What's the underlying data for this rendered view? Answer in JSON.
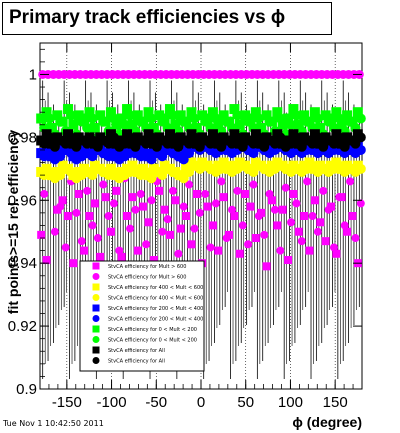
{
  "page": {
    "title": "Primary track efficiencies vs ϕ",
    "timestamp": "Tue Nov  1 10:42:50 2011"
  },
  "chart_data": {
    "type": "scatter",
    "title": "Primary track efficiencies vs ϕ",
    "xlabel": "ϕ (degree)",
    "ylabel": "fit points>=15 rel. efficiency",
    "xlim": [
      -180,
      180
    ],
    "ylim": [
      0.9,
      1.01
    ],
    "xticks": [
      -150,
      -100,
      -50,
      0,
      50,
      100,
      150
    ],
    "yticks": [
      0.9,
      0.92,
      0.94,
      0.96,
      0.98,
      1
    ],
    "ytick_labels": [
      "0.9",
      "0.92",
      "0.94",
      "0.96",
      "0.98",
      "1"
    ],
    "grid": "vertical-dotted",
    "legend_position": "bottom-left",
    "x_start": -177,
    "x_step": 6,
    "series": [
      {
        "name": "StvCA efficiency  for Mult > 600",
        "color": "#ff00ff",
        "marker": "square",
        "values": [
          0.949,
          0.941,
          0.968,
          0.957,
          0.96,
          0.955,
          0.94,
          0.962,
          0.944,
          0.955,
          0.959,
          0.942,
          0.961,
          0.95,
          0.963,
          0.942,
          0.955,
          0.961,
          0.944,
          0.958,
          0.953,
          0.941,
          0.963,
          0.957,
          0.949,
          0.96,
          0.951,
          0.955,
          0.946,
          0.962,
          0.94,
          0.958,
          0.952,
          0.944,
          0.961,
          0.949,
          0.955,
          0.943,
          0.962,
          0.958,
          0.948,
          0.956,
          0.939,
          0.96,
          0.952,
          0.957,
          0.941,
          0.962,
          0.95,
          0.955,
          0.944,
          0.96,
          0.953,
          0.947,
          0.958,
          0.943,
          0.961,
          0.95,
          0.955,
          0.94
        ]
      },
      {
        "name": "StvCA efficiency  for Mult > 600",
        "color": "#ff00ff",
        "marker": "circle",
        "values": [
          0.962,
          0.968,
          0.95,
          0.958,
          0.945,
          0.966,
          0.956,
          0.947,
          0.963,
          0.952,
          0.948,
          0.965,
          0.955,
          0.959,
          0.944,
          0.967,
          0.951,
          0.957,
          0.962,
          0.946,
          0.96,
          0.966,
          0.95,
          0.954,
          0.963,
          0.943,
          0.958,
          0.965,
          0.951,
          0.956,
          0.962,
          0.945,
          0.959,
          0.966,
          0.948,
          0.957,
          0.963,
          0.952,
          0.946,
          0.965,
          0.955,
          0.949,
          0.962,
          0.957,
          0.944,
          0.964,
          0.953,
          0.959,
          0.947,
          0.966,
          0.955,
          0.95,
          0.963,
          0.957,
          0.945,
          0.961,
          0.952,
          0.966,
          0.948,
          0.959
        ]
      },
      {
        "name": "StvCA efficiency  for 400 < Mult < 600",
        "color": "#ffff00",
        "marker": "square",
        "values": [
          0.969,
          0.97,
          0.968,
          0.969,
          0.971,
          0.97,
          0.968,
          0.969,
          0.97,
          0.969,
          0.971,
          0.97,
          0.969,
          0.97,
          0.968,
          0.969,
          0.97,
          0.971,
          0.969,
          0.97,
          0.968,
          0.97,
          0.969,
          0.971,
          0.97,
          0.969,
          0.968,
          0.97,
          0.972,
          0.971,
          0.972,
          0.971,
          0.97,
          0.971,
          0.972,
          0.97,
          0.971,
          0.972,
          0.971,
          0.97,
          0.972,
          0.971,
          0.97,
          0.971,
          0.972,
          0.971,
          0.97,
          0.971,
          0.97,
          0.971,
          0.972,
          0.97,
          0.971,
          0.97,
          0.971,
          0.972,
          0.97,
          0.971,
          0.97,
          0.971
        ]
      },
      {
        "name": "StvCA efficiency  for 400 < Mult < 600",
        "color": "#ffff00",
        "marker": "circle",
        "values": [
          0.968,
          0.969,
          0.967,
          0.968,
          0.97,
          0.969,
          0.967,
          0.968,
          0.969,
          0.968,
          0.97,
          0.969,
          0.968,
          0.969,
          0.967,
          0.968,
          0.969,
          0.97,
          0.968,
          0.969,
          0.967,
          0.969,
          0.968,
          0.97,
          0.969,
          0.968,
          0.967,
          0.969,
          0.971,
          0.97,
          0.971,
          0.97,
          0.969,
          0.97,
          0.971,
          0.969,
          0.97,
          0.971,
          0.97,
          0.969,
          0.971,
          0.97,
          0.969,
          0.97,
          0.971,
          0.97,
          0.969,
          0.97,
          0.969,
          0.97,
          0.971,
          0.969,
          0.97,
          0.969,
          0.97,
          0.971,
          0.969,
          0.97,
          0.969,
          0.97
        ]
      },
      {
        "name": "StvCA efficiency  for 200 < Mult < 400",
        "color": "#0000ff",
        "marker": "square",
        "values": [
          0.975,
          0.976,
          0.974,
          0.975,
          0.977,
          0.976,
          0.974,
          0.975,
          0.976,
          0.975,
          0.977,
          0.976,
          0.975,
          0.976,
          0.974,
          0.975,
          0.976,
          0.977,
          0.975,
          0.976,
          0.974,
          0.976,
          0.975,
          0.977,
          0.976,
          0.975,
          0.974,
          0.976,
          0.978,
          0.977,
          0.978,
          0.977,
          0.976,
          0.977,
          0.978,
          0.976,
          0.977,
          0.978,
          0.977,
          0.976,
          0.978,
          0.977,
          0.976,
          0.977,
          0.978,
          0.977,
          0.976,
          0.977,
          0.976,
          0.977,
          0.978,
          0.976,
          0.977,
          0.976,
          0.977,
          0.978,
          0.976,
          0.977,
          0.976,
          0.977
        ]
      },
      {
        "name": "StvCA efficiency  for 200 < Mult < 400",
        "color": "#0000ff",
        "marker": "circle",
        "values": [
          0.974,
          0.975,
          0.973,
          0.974,
          0.976,
          0.975,
          0.973,
          0.974,
          0.975,
          0.974,
          0.976,
          0.975,
          0.974,
          0.975,
          0.973,
          0.974,
          0.975,
          0.976,
          0.974,
          0.975,
          0.973,
          0.975,
          0.974,
          0.976,
          0.975,
          0.974,
          0.973,
          0.975,
          0.977,
          0.976,
          0.977,
          0.976,
          0.975,
          0.976,
          0.977,
          0.975,
          0.976,
          0.977,
          0.976,
          0.975,
          0.977,
          0.976,
          0.975,
          0.976,
          0.977,
          0.976,
          0.975,
          0.976,
          0.975,
          0.976,
          0.977,
          0.975,
          0.976,
          0.975,
          0.976,
          0.977,
          0.975,
          0.976,
          0.975,
          0.976
        ]
      },
      {
        "name": "StvCA efficiency  for 0 < Mult < 200",
        "color": "#00ff00",
        "marker": "square",
        "values": [
          0.986,
          0.988,
          0.983,
          0.987,
          0.985,
          0.989,
          0.984,
          0.987,
          0.986,
          0.988,
          0.983,
          0.987,
          0.985,
          0.988,
          0.984,
          0.986,
          0.989,
          0.984,
          0.987,
          0.985,
          0.988,
          0.983,
          0.987,
          0.986,
          0.989,
          0.984,
          0.987,
          0.985,
          0.988,
          0.983,
          0.987,
          0.986,
          0.988,
          0.984,
          0.987,
          0.985,
          0.989,
          0.984,
          0.987,
          0.986,
          0.988,
          0.983,
          0.987,
          0.985,
          0.988,
          0.984,
          0.986,
          0.989,
          0.984,
          0.987,
          0.985,
          0.988,
          0.983,
          0.987,
          0.986,
          0.988,
          0.984,
          0.987,
          0.985,
          0.988
        ]
      },
      {
        "name": "StvCA efficiency  for 0 < Mult < 200",
        "color": "#00ff00",
        "marker": "circle",
        "values": [
          0.983,
          0.986,
          0.981,
          0.985,
          0.982,
          0.987,
          0.981,
          0.985,
          0.983,
          0.986,
          0.98,
          0.985,
          0.982,
          0.986,
          0.981,
          0.984,
          0.987,
          0.982,
          0.985,
          0.983,
          0.986,
          0.981,
          0.985,
          0.983,
          0.987,
          0.982,
          0.985,
          0.983,
          0.986,
          0.981,
          0.985,
          0.983,
          0.986,
          0.982,
          0.985,
          0.983,
          0.987,
          0.981,
          0.985,
          0.983,
          0.986,
          0.981,
          0.985,
          0.982,
          0.986,
          0.981,
          0.984,
          0.987,
          0.982,
          0.985,
          0.983,
          0.986,
          0.981,
          0.985,
          0.983,
          0.986,
          0.982,
          0.985,
          0.983,
          0.986
        ]
      },
      {
        "name": "StvCA efficiency  for All",
        "color": "#000000",
        "marker": "square",
        "values": [
          0.979,
          0.981,
          0.978,
          0.98,
          0.979,
          0.981,
          0.978,
          0.98,
          0.979,
          0.98,
          0.978,
          0.98,
          0.979,
          0.981,
          0.978,
          0.979,
          0.981,
          0.978,
          0.98,
          0.979,
          0.981,
          0.978,
          0.98,
          0.979,
          0.981,
          0.978,
          0.98,
          0.979,
          0.981,
          0.978,
          0.98,
          0.979,
          0.981,
          0.978,
          0.98,
          0.979,
          0.981,
          0.978,
          0.98,
          0.979,
          0.981,
          0.978,
          0.98,
          0.979,
          0.981,
          0.978,
          0.979,
          0.981,
          0.978,
          0.98,
          0.979,
          0.981,
          0.978,
          0.98,
          0.979,
          0.981,
          0.978,
          0.98,
          0.979,
          0.981
        ]
      },
      {
        "name": "StvCA efficiency  for All",
        "color": "#000000",
        "marker": "circle",
        "values": [
          0.978,
          0.98,
          0.977,
          0.979,
          0.978,
          0.98,
          0.977,
          0.979,
          0.978,
          0.979,
          0.977,
          0.979,
          0.978,
          0.98,
          0.977,
          0.978,
          0.98,
          0.977,
          0.979,
          0.978,
          0.98,
          0.977,
          0.979,
          0.978,
          0.98,
          0.977,
          0.979,
          0.978,
          0.98,
          0.977,
          0.979,
          0.978,
          0.98,
          0.977,
          0.979,
          0.978,
          0.98,
          0.977,
          0.979,
          0.978,
          0.98,
          0.977,
          0.979,
          0.978,
          0.98,
          0.977,
          0.978,
          0.98,
          0.977,
          0.979,
          0.978,
          0.98,
          0.977,
          0.979,
          0.978,
          0.98,
          0.977,
          0.979,
          0.978,
          0.98
        ]
      }
    ],
    "top_row": {
      "name": "StvCA efficiency  for Mult > 600",
      "color": "#ff00ff",
      "marker": "circle",
      "value": 1.0
    }
  },
  "legend": {
    "entries": [
      {
        "label": "StvCA efficiency  for Mult > 600",
        "color": "#ff00ff",
        "marker": "square"
      },
      {
        "label": "StvCA efficiency  for Mult > 600",
        "color": "#ff00ff",
        "marker": "circle"
      },
      {
        "label": "StvCA efficiency  for 400 < Mult < 600",
        "color": "#ffff00",
        "marker": "square"
      },
      {
        "label": "StvCA efficiency  for 400 < Mult < 600",
        "color": "#ffff00",
        "marker": "circle"
      },
      {
        "label": "StvCA efficiency  for 200 < Mult < 400",
        "color": "#0000ff",
        "marker": "square"
      },
      {
        "label": "StvCA efficiency  for 200 < Mult < 400",
        "color": "#0000ff",
        "marker": "circle"
      },
      {
        "label": "StvCA efficiency  for 0 < Mult < 200",
        "color": "#00ff00",
        "marker": "square"
      },
      {
        "label": "StvCA efficiency  for 0 < Mult < 200",
        "color": "#00ff00",
        "marker": "circle"
      },
      {
        "label": "StvCA efficiency  for All",
        "color": "#000000",
        "marker": "square"
      },
      {
        "label": "StvCA efficiency  for All",
        "color": "#000000",
        "marker": "circle"
      }
    ]
  }
}
